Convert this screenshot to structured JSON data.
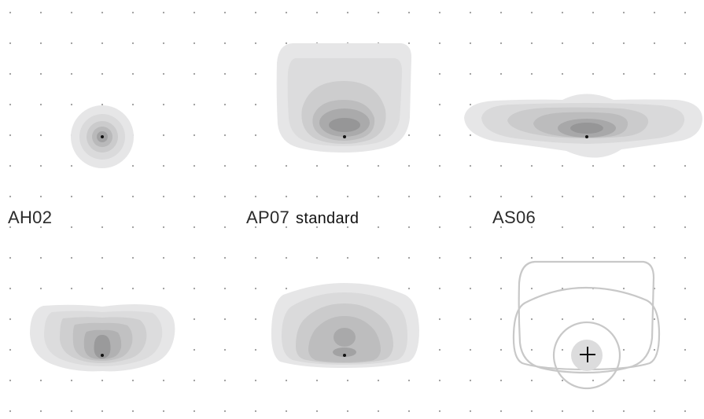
{
  "labels": {
    "ah02": "AH02",
    "ap07": "AP07",
    "ap07_suffix": "standard",
    "as06": "AS06"
  },
  "colors": {
    "dot_grid": "#9a9a9a",
    "level1": "#e6e6e7",
    "level2": "#d9d9da",
    "level3": "#cbcbcc",
    "level4": "#bdbdbe",
    "level5": "#acacad",
    "level6": "#9a9a9b",
    "outline": "#c8c8c8",
    "center_dot": "#111111"
  },
  "icons": {
    "crosshair": "plus-icon"
  }
}
